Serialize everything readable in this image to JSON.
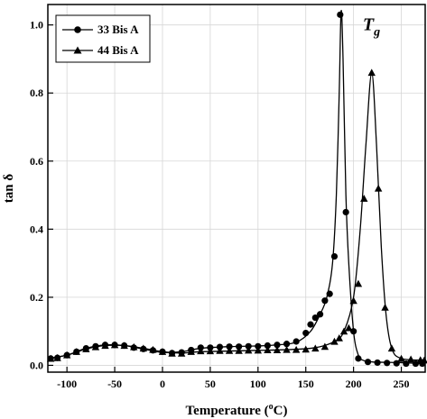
{
  "chart_data": {
    "type": "line",
    "xlabel": "Temperature",
    "xlabel_unit_prefix": "(",
    "xlabel_unit_sup": "o",
    "xlabel_unit_suffix": "C)",
    "ylabel": "tan δ",
    "xlim": [
      -120,
      275
    ],
    "ylim": [
      -0.02,
      1.06
    ],
    "xticks": [
      -100,
      -50,
      0,
      50,
      100,
      150,
      200,
      250
    ],
    "xtick_labels": [
      "-100",
      "-50",
      "0",
      "50",
      "100",
      "150",
      "200",
      "250"
    ],
    "yticks": [
      0.0,
      0.2,
      0.4,
      0.6,
      0.8,
      1.0
    ],
    "ytick_labels": [
      "0.0",
      "0.2",
      "0.4",
      "0.6",
      "0.8",
      "1.0"
    ],
    "grid": true,
    "legend_position": "top-left",
    "annotation": {
      "text": "T",
      "subscript": "g",
      "x": 205,
      "y": 1.0
    },
    "series": [
      {
        "name": "33 Bis A",
        "marker": "circle",
        "color": "#000000",
        "curve": [
          [
            -120,
            0.02
          ],
          [
            -100,
            0.03
          ],
          [
            -80,
            0.05
          ],
          [
            -60,
            0.06
          ],
          [
            -40,
            0.058
          ],
          [
            -20,
            0.048
          ],
          [
            0,
            0.038
          ],
          [
            20,
            0.04
          ],
          [
            40,
            0.05
          ],
          [
            70,
            0.055
          ],
          [
            100,
            0.057
          ],
          [
            120,
            0.06
          ],
          [
            140,
            0.068
          ],
          [
            155,
            0.1
          ],
          [
            165,
            0.15
          ],
          [
            172,
            0.2
          ],
          [
            178,
            0.3
          ],
          [
            182,
            0.5
          ],
          [
            185,
            0.8
          ],
          [
            187,
            1.04
          ],
          [
            189,
            0.9
          ],
          [
            192,
            0.5
          ],
          [
            195,
            0.3
          ],
          [
            200,
            0.1
          ],
          [
            205,
            0.03
          ],
          [
            210,
            0.015
          ],
          [
            220,
            0.01
          ],
          [
            250,
            0.008
          ],
          [
            275,
            0.005
          ]
        ],
        "points": [
          [
            -117,
            0.02
          ],
          [
            -110,
            0.022
          ],
          [
            -100,
            0.03
          ],
          [
            -90,
            0.04
          ],
          [
            -80,
            0.05
          ],
          [
            -70,
            0.056
          ],
          [
            -60,
            0.06
          ],
          [
            -50,
            0.06
          ],
          [
            -40,
            0.058
          ],
          [
            -30,
            0.052
          ],
          [
            -20,
            0.048
          ],
          [
            -10,
            0.044
          ],
          [
            0,
            0.04
          ],
          [
            10,
            0.036
          ],
          [
            20,
            0.038
          ],
          [
            30,
            0.045
          ],
          [
            40,
            0.052
          ],
          [
            50,
            0.052
          ],
          [
            60,
            0.054
          ],
          [
            70,
            0.055
          ],
          [
            80,
            0.055
          ],
          [
            90,
            0.056
          ],
          [
            100,
            0.056
          ],
          [
            110,
            0.058
          ],
          [
            120,
            0.06
          ],
          [
            130,
            0.063
          ],
          [
            140,
            0.07
          ],
          [
            150,
            0.095
          ],
          [
            155,
            0.12
          ],
          [
            160,
            0.14
          ],
          [
            165,
            0.15
          ],
          [
            170,
            0.19
          ],
          [
            175,
            0.21
          ],
          [
            180,
            0.32
          ],
          [
            186,
            1.03
          ],
          [
            192,
            0.45
          ],
          [
            200,
            0.1
          ],
          [
            205,
            0.02
          ],
          [
            215,
            0.01
          ],
          [
            225,
            0.008
          ],
          [
            235,
            0.007
          ],
          [
            245,
            0.006
          ],
          [
            255,
            0.005
          ],
          [
            265,
            0.005
          ],
          [
            272,
            0.005
          ]
        ]
      },
      {
        "name": "44 Bis A",
        "marker": "triangle",
        "color": "#000000",
        "curve": [
          [
            -120,
            0.02
          ],
          [
            -100,
            0.03
          ],
          [
            -80,
            0.048
          ],
          [
            -60,
            0.058
          ],
          [
            -40,
            0.058
          ],
          [
            -20,
            0.05
          ],
          [
            0,
            0.04
          ],
          [
            20,
            0.036
          ],
          [
            40,
            0.04
          ],
          [
            70,
            0.042
          ],
          [
            100,
            0.044
          ],
          [
            130,
            0.046
          ],
          [
            160,
            0.052
          ],
          [
            180,
            0.07
          ],
          [
            190,
            0.1
          ],
          [
            200,
            0.2
          ],
          [
            207,
            0.4
          ],
          [
            213,
            0.65
          ],
          [
            219,
            0.86
          ],
          [
            224,
            0.65
          ],
          [
            229,
            0.35
          ],
          [
            234,
            0.15
          ],
          [
            240,
            0.05
          ],
          [
            250,
            0.02
          ],
          [
            275,
            0.015
          ]
        ],
        "points": [
          [
            -117,
            0.02
          ],
          [
            -110,
            0.022
          ],
          [
            -100,
            0.03
          ],
          [
            -90,
            0.04
          ],
          [
            -80,
            0.048
          ],
          [
            -70,
            0.054
          ],
          [
            -60,
            0.058
          ],
          [
            -50,
            0.06
          ],
          [
            -40,
            0.058
          ],
          [
            -30,
            0.054
          ],
          [
            -20,
            0.05
          ],
          [
            -10,
            0.046
          ],
          [
            0,
            0.04
          ],
          [
            10,
            0.035
          ],
          [
            20,
            0.035
          ],
          [
            30,
            0.04
          ],
          [
            40,
            0.042
          ],
          [
            50,
            0.042
          ],
          [
            60,
            0.043
          ],
          [
            70,
            0.043
          ],
          [
            80,
            0.043
          ],
          [
            90,
            0.044
          ],
          [
            100,
            0.044
          ],
          [
            110,
            0.045
          ],
          [
            120,
            0.045
          ],
          [
            130,
            0.046
          ],
          [
            140,
            0.046
          ],
          [
            150,
            0.047
          ],
          [
            160,
            0.05
          ],
          [
            170,
            0.055
          ],
          [
            180,
            0.07
          ],
          [
            185,
            0.08
          ],
          [
            190,
            0.1
          ],
          [
            195,
            0.11
          ],
          [
            200,
            0.19
          ],
          [
            205,
            0.24
          ],
          [
            211,
            0.49
          ],
          [
            219,
            0.86
          ],
          [
            226,
            0.52
          ],
          [
            233,
            0.17
          ],
          [
            240,
            0.05
          ],
          [
            250,
            0.02
          ],
          [
            260,
            0.018
          ],
          [
            270,
            0.016
          ],
          [
            274,
            0.015
          ]
        ]
      }
    ]
  }
}
